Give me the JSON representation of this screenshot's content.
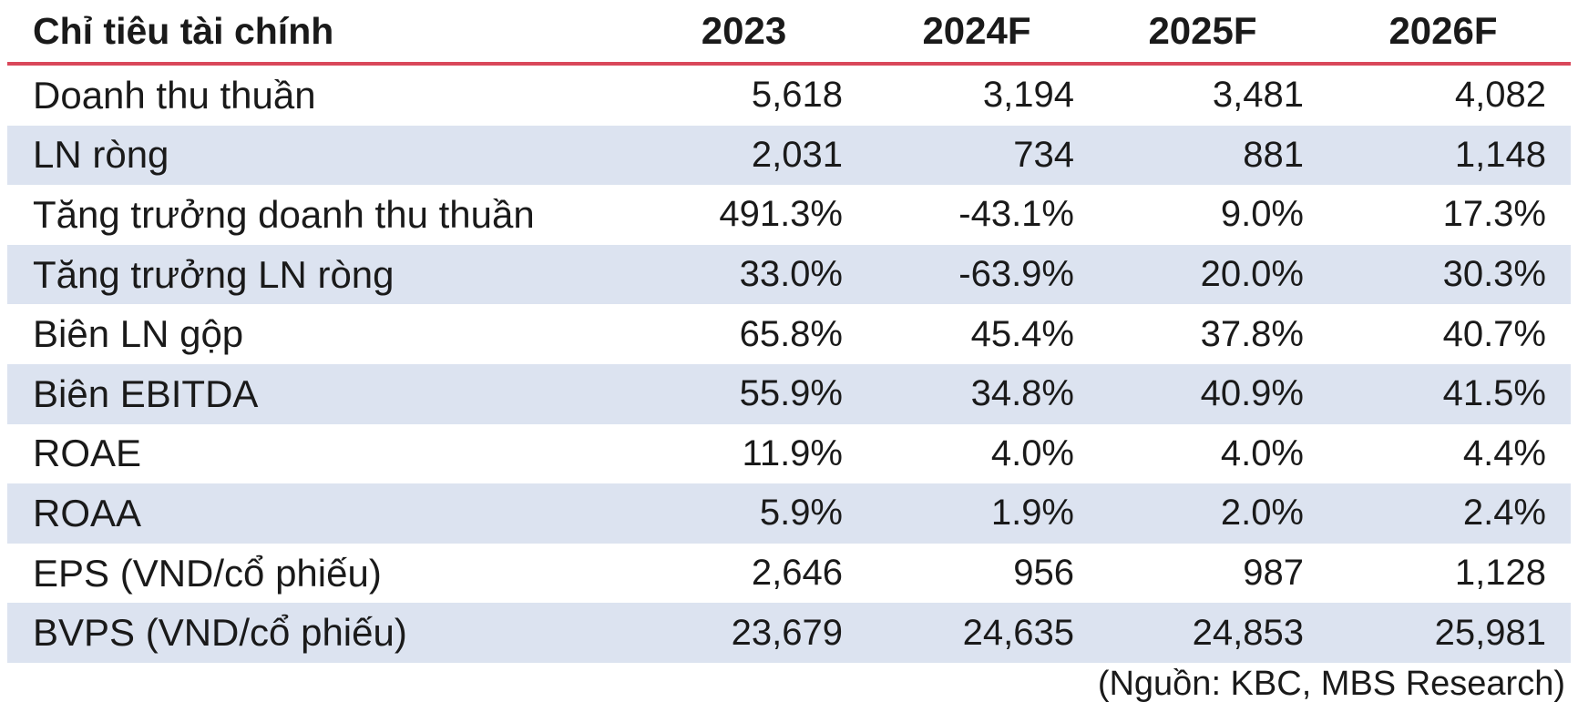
{
  "table": {
    "header": {
      "label": "Chỉ tiêu tài chính",
      "years": [
        "2023",
        "2024F",
        "2025F",
        "2026F"
      ]
    },
    "rows": [
      {
        "label": "Doanh thu thuần",
        "values": [
          "5,618",
          "3,194",
          "3,481",
          "4,082"
        ]
      },
      {
        "label": "LN ròng",
        "values": [
          "2,031",
          "734",
          "881",
          "1,148"
        ]
      },
      {
        "label": "Tăng trưởng doanh thu thuần",
        "values": [
          "491.3%",
          "-43.1%",
          "9.0%",
          "17.3%"
        ]
      },
      {
        "label": "Tăng trưởng LN ròng",
        "values": [
          "33.0%",
          "-63.9%",
          "20.0%",
          "30.3%"
        ]
      },
      {
        "label": "Biên LN gộp",
        "values": [
          "65.8%",
          "45.4%",
          "37.8%",
          "40.7%"
        ]
      },
      {
        "label": "Biên EBITDA",
        "values": [
          "55.9%",
          "34.8%",
          "40.9%",
          "41.5%"
        ]
      },
      {
        "label": "ROAE",
        "values": [
          "11.9%",
          "4.0%",
          "4.0%",
          "4.4%"
        ]
      },
      {
        "label": "ROAA",
        "values": [
          "5.9%",
          "1.9%",
          "2.0%",
          "2.4%"
        ]
      },
      {
        "label": "EPS (VND/cổ phiếu)",
        "values": [
          "2,646",
          "956",
          "987",
          "1,128"
        ]
      },
      {
        "label": "BVPS (VND/cổ phiếu)",
        "values": [
          "23,679",
          "24,635",
          "24,853",
          "25,981"
        ]
      }
    ]
  },
  "source": "(Nguồn: KBC, MBS Research)",
  "colors": {
    "header_rule": "#d9475a",
    "row_shade": "#dce3f0"
  }
}
